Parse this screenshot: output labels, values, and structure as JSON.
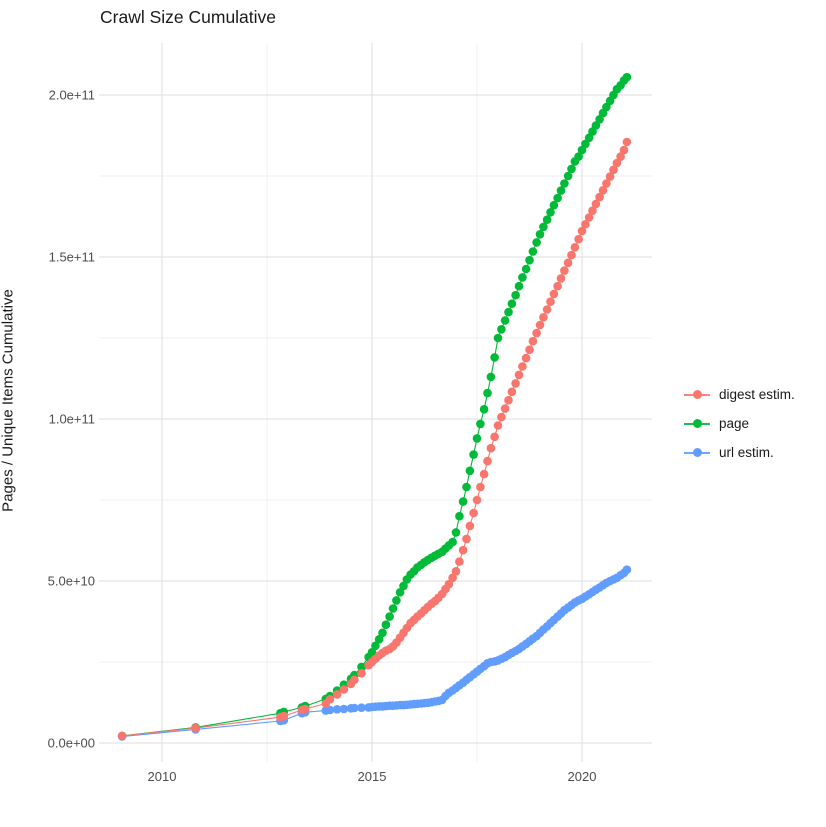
{
  "title": "Crawl Size Cumulative",
  "chart_data": {
    "type": "scatter",
    "title": "Crawl Size Cumulative",
    "xlabel": "",
    "ylabel": "Pages / Unique Items Cumulative",
    "x_unit": "year (decimal)",
    "value_unit": "items (stored in billions; multiply by 1e9)",
    "xlim": [
      2008.5,
      2021.7
    ],
    "ylim": [
      0,
      216000000000.0
    ],
    "grid": "major+minor",
    "legend_position": "right",
    "x_ticks": {
      "major": [
        2010,
        2015,
        2020
      ],
      "labels": [
        "2010",
        "2015",
        "2020"
      ],
      "minor": [
        2012.5,
        2017.5
      ]
    },
    "y_ticks": {
      "major_billions": [
        0,
        50,
        100,
        150,
        200
      ],
      "labels": [
        "0.0e+00",
        "5.0e+10",
        "1.0e+11",
        "1.5e+11",
        "2.0e+11"
      ],
      "minor_billions": [
        25,
        75,
        125,
        175
      ]
    },
    "series": [
      {
        "name": "page",
        "color": "#00BA38",
        "points": [
          [
            2009.05,
            2.2
          ],
          [
            2010.8,
            4.8
          ],
          [
            2012.82,
            9.2
          ],
          [
            2012.9,
            9.6
          ],
          [
            2013.33,
            11
          ],
          [
            2013.41,
            11.4
          ],
          [
            2013.9,
            13.6
          ],
          [
            2014.0,
            14.5
          ],
          [
            2014.17,
            16.2
          ],
          [
            2014.33,
            18
          ],
          [
            2014.5,
            19.8
          ],
          [
            2014.58,
            21
          ],
          [
            2014.75,
            23.5
          ],
          [
            2014.92,
            26.5
          ],
          [
            2015.0,
            28
          ],
          [
            2015.08,
            30
          ],
          [
            2015.17,
            32
          ],
          [
            2015.25,
            34
          ],
          [
            2015.33,
            36.5
          ],
          [
            2015.42,
            39
          ],
          [
            2015.5,
            41.5
          ],
          [
            2015.58,
            44
          ],
          [
            2015.67,
            46.5
          ],
          [
            2015.75,
            48.5
          ],
          [
            2015.83,
            50.5
          ],
          [
            2015.92,
            52
          ],
          [
            2016.0,
            53
          ],
          [
            2016.08,
            54.2
          ],
          [
            2016.17,
            55
          ],
          [
            2016.25,
            55.8
          ],
          [
            2016.33,
            56.5
          ],
          [
            2016.42,
            57.2
          ],
          [
            2016.5,
            57.8
          ],
          [
            2016.58,
            58.4
          ],
          [
            2016.67,
            59
          ],
          [
            2016.75,
            60
          ],
          [
            2016.83,
            61
          ],
          [
            2016.92,
            62
          ],
          [
            2017.0,
            65
          ],
          [
            2017.08,
            70
          ],
          [
            2017.17,
            74.5
          ],
          [
            2017.25,
            79
          ],
          [
            2017.33,
            84
          ],
          [
            2017.42,
            89
          ],
          [
            2017.5,
            94
          ],
          [
            2017.58,
            98.5
          ],
          [
            2017.67,
            103
          ],
          [
            2017.75,
            108
          ],
          [
            2017.83,
            113
          ],
          [
            2017.92,
            119
          ],
          [
            2018.0,
            125
          ],
          [
            2018.08,
            127.7
          ],
          [
            2018.17,
            130.4
          ],
          [
            2018.25,
            133
          ],
          [
            2018.33,
            135.6
          ],
          [
            2018.42,
            138.2
          ],
          [
            2018.5,
            141
          ],
          [
            2018.58,
            143.7
          ],
          [
            2018.67,
            146.3
          ],
          [
            2018.75,
            149
          ],
          [
            2018.83,
            151.7
          ],
          [
            2018.92,
            154.5
          ],
          [
            2019.0,
            157
          ],
          [
            2019.08,
            159.3
          ],
          [
            2019.17,
            161.5
          ],
          [
            2019.25,
            163.8
          ],
          [
            2019.33,
            166
          ],
          [
            2019.42,
            168.2
          ],
          [
            2019.5,
            170.5
          ],
          [
            2019.58,
            172.7
          ],
          [
            2019.67,
            175
          ],
          [
            2019.75,
            177.2
          ],
          [
            2019.83,
            179.5
          ],
          [
            2019.92,
            181
          ],
          [
            2020.0,
            183
          ],
          [
            2020.08,
            184.9
          ],
          [
            2020.17,
            186.8
          ],
          [
            2020.25,
            188.7
          ],
          [
            2020.33,
            190.6
          ],
          [
            2020.42,
            192.5
          ],
          [
            2020.5,
            194.4
          ],
          [
            2020.58,
            196.3
          ],
          [
            2020.67,
            198.2
          ],
          [
            2020.75,
            200
          ],
          [
            2020.83,
            201.8
          ],
          [
            2020.92,
            203
          ],
          [
            2021.0,
            204.5
          ],
          [
            2021.07,
            205.5
          ]
        ]
      },
      {
        "name": "url estim.",
        "color": "#619CFF",
        "points": [
          [
            2009.05,
            2
          ],
          [
            2010.8,
            4.2
          ],
          [
            2012.82,
            6.8
          ],
          [
            2012.9,
            7
          ],
          [
            2013.33,
            9.2
          ],
          [
            2013.41,
            9.5
          ],
          [
            2013.9,
            10
          ],
          [
            2014.0,
            10.2
          ],
          [
            2014.17,
            10.4
          ],
          [
            2014.33,
            10.5
          ],
          [
            2014.5,
            10.7
          ],
          [
            2014.58,
            10.8
          ],
          [
            2014.75,
            10.9
          ],
          [
            2014.92,
            11
          ],
          [
            2015.0,
            11.1
          ],
          [
            2015.08,
            11.2
          ],
          [
            2015.17,
            11.3
          ],
          [
            2015.25,
            11.3
          ],
          [
            2015.33,
            11.4
          ],
          [
            2015.42,
            11.5
          ],
          [
            2015.5,
            11.5
          ],
          [
            2015.58,
            11.6
          ],
          [
            2015.67,
            11.7
          ],
          [
            2015.75,
            11.7
          ],
          [
            2015.83,
            11.8
          ],
          [
            2015.92,
            11.9
          ],
          [
            2016.0,
            12
          ],
          [
            2016.08,
            12.1
          ],
          [
            2016.17,
            12.2
          ],
          [
            2016.25,
            12.3
          ],
          [
            2016.33,
            12.4
          ],
          [
            2016.42,
            12.6
          ],
          [
            2016.5,
            12.8
          ],
          [
            2016.58,
            13
          ],
          [
            2016.67,
            13.3
          ],
          [
            2016.75,
            14.5
          ],
          [
            2016.83,
            15.5
          ],
          [
            2016.92,
            16.2
          ],
          [
            2017.0,
            17
          ],
          [
            2017.08,
            17.8
          ],
          [
            2017.17,
            18.6
          ],
          [
            2017.25,
            19.5
          ],
          [
            2017.33,
            20.3
          ],
          [
            2017.42,
            21.2
          ],
          [
            2017.5,
            22
          ],
          [
            2017.58,
            22.9
          ],
          [
            2017.67,
            23.7
          ],
          [
            2017.75,
            24.6
          ],
          [
            2017.83,
            25
          ],
          [
            2017.92,
            25.2
          ],
          [
            2018.0,
            25.5
          ],
          [
            2018.08,
            26
          ],
          [
            2018.17,
            26.5
          ],
          [
            2018.25,
            27.2
          ],
          [
            2018.33,
            27.8
          ],
          [
            2018.42,
            28.4
          ],
          [
            2018.5,
            29
          ],
          [
            2018.58,
            29.8
          ],
          [
            2018.67,
            30.6
          ],
          [
            2018.75,
            31.4
          ],
          [
            2018.83,
            32.2
          ],
          [
            2018.92,
            33
          ],
          [
            2019.0,
            34
          ],
          [
            2019.08,
            35
          ],
          [
            2019.17,
            36
          ],
          [
            2019.25,
            37
          ],
          [
            2019.33,
            38
          ],
          [
            2019.42,
            39
          ],
          [
            2019.5,
            40
          ],
          [
            2019.58,
            41
          ],
          [
            2019.67,
            41.8
          ],
          [
            2019.75,
            42.6
          ],
          [
            2019.83,
            43.4
          ],
          [
            2019.92,
            44
          ],
          [
            2020.0,
            44.5
          ],
          [
            2020.08,
            45.2
          ],
          [
            2020.17,
            45.9
          ],
          [
            2020.25,
            46.6
          ],
          [
            2020.33,
            47.3
          ],
          [
            2020.42,
            48
          ],
          [
            2020.5,
            48.7
          ],
          [
            2020.58,
            49.4
          ],
          [
            2020.67,
            50
          ],
          [
            2020.75,
            50.5
          ],
          [
            2020.83,
            51
          ],
          [
            2020.92,
            51.8
          ],
          [
            2021.0,
            52.5
          ],
          [
            2021.07,
            53.5
          ]
        ]
      },
      {
        "name": "digest estim.",
        "color": "#F8766D",
        "points": [
          [
            2009.05,
            2.2
          ],
          [
            2010.8,
            4.6
          ],
          [
            2012.82,
            8
          ],
          [
            2012.9,
            8.3
          ],
          [
            2013.33,
            10.2
          ],
          [
            2013.41,
            10.5
          ],
          [
            2013.9,
            12.2
          ],
          [
            2014.0,
            13.5
          ],
          [
            2014.17,
            15
          ],
          [
            2014.33,
            16.5
          ],
          [
            2014.5,
            18.2
          ],
          [
            2014.58,
            19.5
          ],
          [
            2014.75,
            21.5
          ],
          [
            2014.92,
            24
          ],
          [
            2015.0,
            25
          ],
          [
            2015.08,
            26
          ],
          [
            2015.17,
            27
          ],
          [
            2015.25,
            27.8
          ],
          [
            2015.33,
            28.5
          ],
          [
            2015.42,
            29
          ],
          [
            2015.5,
            29.8
          ],
          [
            2015.58,
            31
          ],
          [
            2015.67,
            32.5
          ],
          [
            2015.75,
            34
          ],
          [
            2015.83,
            35.5
          ],
          [
            2015.92,
            37
          ],
          [
            2016.0,
            38
          ],
          [
            2016.08,
            39
          ],
          [
            2016.17,
            40
          ],
          [
            2016.25,
            41
          ],
          [
            2016.33,
            42
          ],
          [
            2016.42,
            43
          ],
          [
            2016.5,
            43.8
          ],
          [
            2016.58,
            44.8
          ],
          [
            2016.67,
            46
          ],
          [
            2016.75,
            47.5
          ],
          [
            2016.83,
            49
          ],
          [
            2016.92,
            51
          ],
          [
            2017.0,
            53
          ],
          [
            2017.08,
            56
          ],
          [
            2017.17,
            59.5
          ],
          [
            2017.25,
            63
          ],
          [
            2017.33,
            67
          ],
          [
            2017.42,
            71
          ],
          [
            2017.5,
            75
          ],
          [
            2017.58,
            79
          ],
          [
            2017.67,
            83
          ],
          [
            2017.75,
            87
          ],
          [
            2017.83,
            91
          ],
          [
            2017.92,
            94.5
          ],
          [
            2018.0,
            98
          ],
          [
            2018.08,
            100.6
          ],
          [
            2018.17,
            103.2
          ],
          [
            2018.25,
            105.8
          ],
          [
            2018.33,
            108.4
          ],
          [
            2018.42,
            111
          ],
          [
            2018.5,
            113.6
          ],
          [
            2018.58,
            116.2
          ],
          [
            2018.67,
            118.8
          ],
          [
            2018.75,
            121.4
          ],
          [
            2018.83,
            124
          ],
          [
            2018.92,
            126.5
          ],
          [
            2019.0,
            129
          ],
          [
            2019.08,
            131.4
          ],
          [
            2019.17,
            133.8
          ],
          [
            2019.25,
            136.2
          ],
          [
            2019.33,
            138.6
          ],
          [
            2019.42,
            141
          ],
          [
            2019.5,
            143.4
          ],
          [
            2019.58,
            145.8
          ],
          [
            2019.67,
            148.2
          ],
          [
            2019.75,
            150.6
          ],
          [
            2019.83,
            153
          ],
          [
            2019.92,
            155.5
          ],
          [
            2020.0,
            158
          ],
          [
            2020.08,
            160.1
          ],
          [
            2020.17,
            162.2
          ],
          [
            2020.25,
            164.3
          ],
          [
            2020.33,
            166.4
          ],
          [
            2020.42,
            168.5
          ],
          [
            2020.5,
            170.6
          ],
          [
            2020.58,
            172.7
          ],
          [
            2020.67,
            174.8
          ],
          [
            2020.75,
            176.9
          ],
          [
            2020.83,
            179
          ],
          [
            2020.92,
            181
          ],
          [
            2021.0,
            183
          ],
          [
            2021.07,
            185.5
          ]
        ]
      }
    ],
    "legend_order": [
      "digest estim.",
      "page",
      "url estim."
    ]
  },
  "colors": {
    "grid_major": "#e3e3e3",
    "grid_minor": "#efefef",
    "axis_text": "#4d4d4d",
    "text": "#1a1a1a"
  }
}
